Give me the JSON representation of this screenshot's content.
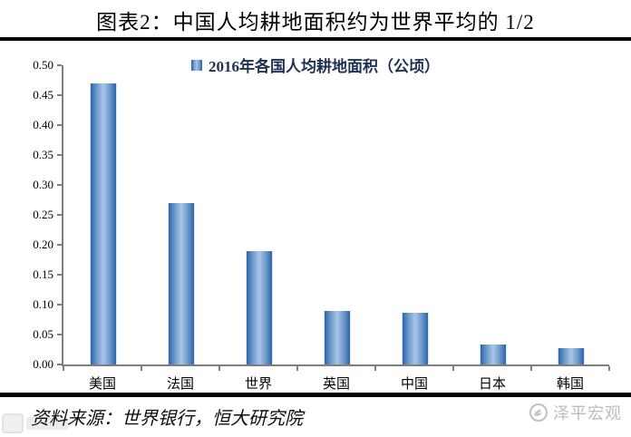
{
  "header": {
    "title": "图表2：中国人均耕地面积约为世界平均的 1/2"
  },
  "legend": {
    "label": "2016年各国人均耕地面积（公顷）",
    "marker_color": "#4f81bd"
  },
  "chart_data": {
    "type": "bar",
    "title": "2016年各国人均耕地面积（公顷）",
    "categories": [
      "美国",
      "法国",
      "世界",
      "英国",
      "中国",
      "日本",
      "韩国"
    ],
    "values": [
      0.47,
      0.27,
      0.19,
      0.09,
      0.086,
      0.033,
      0.028
    ],
    "xlabel": "",
    "ylabel": "",
    "ylim": [
      0,
      0.5
    ],
    "yticks": [
      "0.00",
      "0.05",
      "0.10",
      "0.15",
      "0.20",
      "0.25",
      "0.30",
      "0.35",
      "0.40",
      "0.45",
      "0.50"
    ],
    "grid": false,
    "legend_position": "top-center",
    "bar_edge_color": "#2d65aa",
    "bar_center_color": "#a9c6e5",
    "axis_color": "#7f7f7f"
  },
  "footer": {
    "source": "资料来源：世界银行，恒大研究院",
    "brand": "泽平宏观"
  }
}
